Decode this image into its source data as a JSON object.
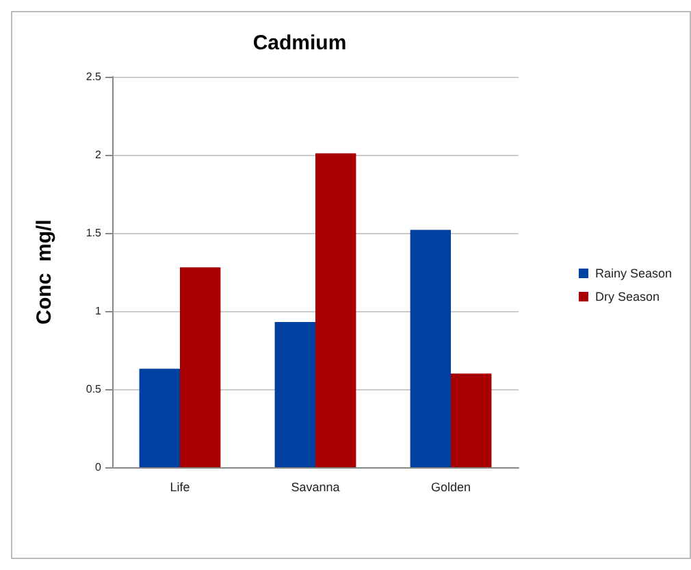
{
  "chart_data": {
    "type": "bar",
    "title": "Cadmium",
    "ylabel": "Conc  mg/l",
    "categories": [
      "Life",
      "Savanna",
      "Golden"
    ],
    "series": [
      {
        "name": "Rainy Season",
        "color": "#0040a0",
        "values": [
          0.63,
          0.93,
          1.52
        ]
      },
      {
        "name": "Dry Season",
        "color": "#a80000",
        "values": [
          1.28,
          2.01,
          0.6
        ]
      }
    ],
    "ylim": [
      0,
      2.5
    ],
    "yticks": [
      0,
      0.5,
      1,
      1.5,
      2,
      2.5
    ],
    "grid": "y",
    "legend": "right"
  }
}
